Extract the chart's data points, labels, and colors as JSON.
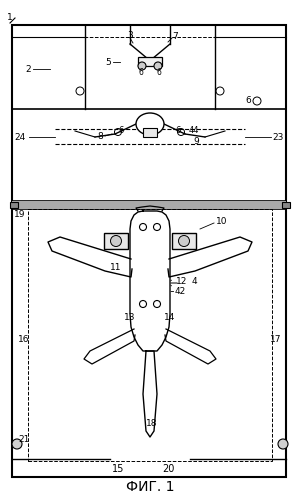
{
  "title": "ФИГ. 1",
  "bg_color": "#ffffff",
  "line_color": "#000000",
  "fig_width": 3.0,
  "fig_height": 4.99,
  "dpi": 100
}
